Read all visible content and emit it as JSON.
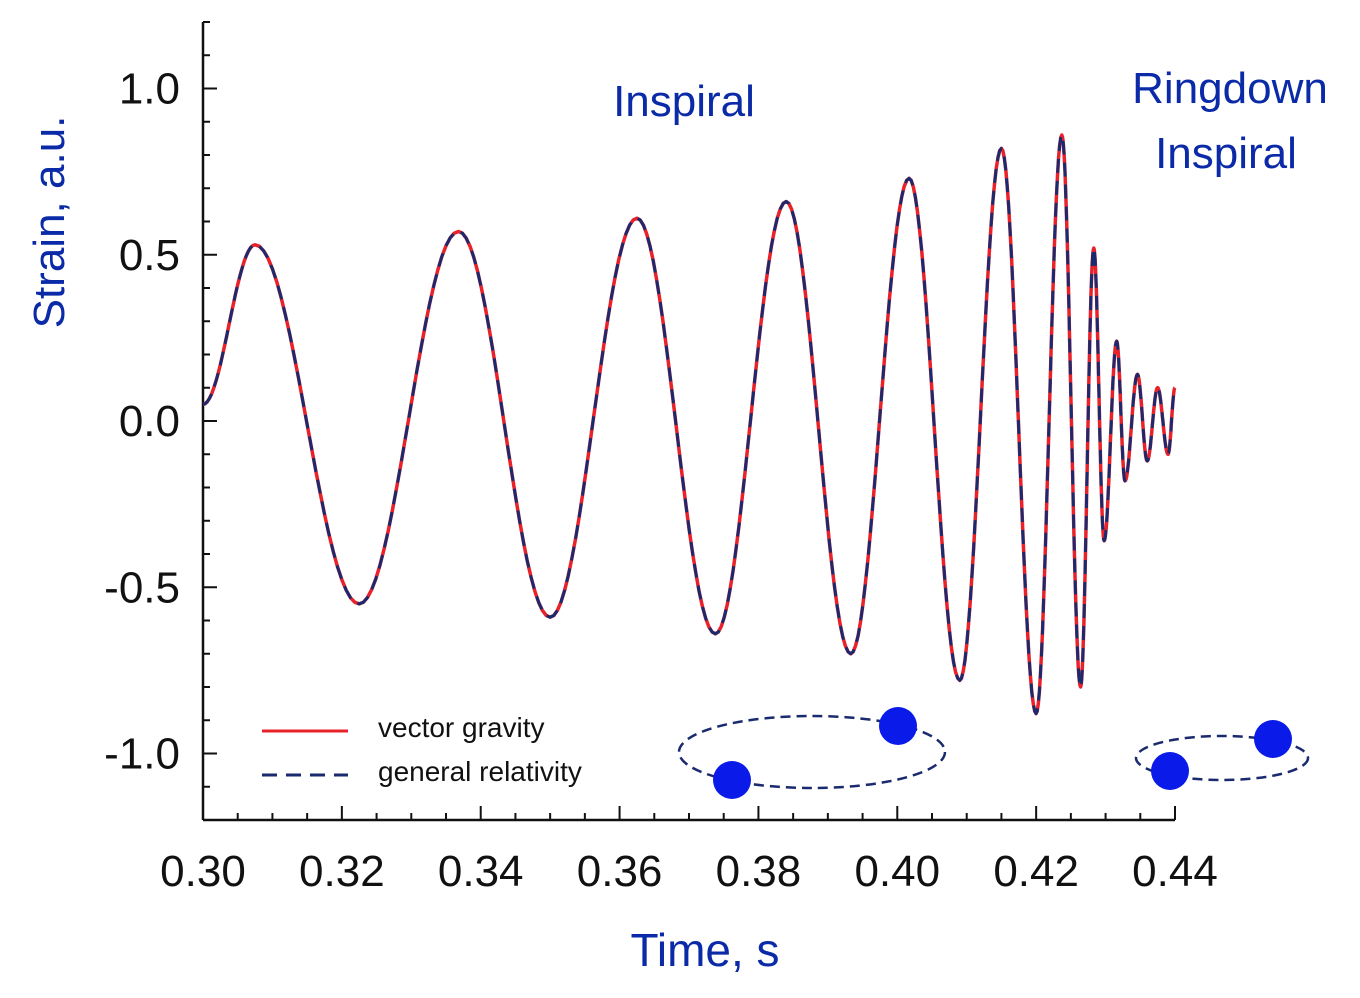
{
  "chart_data": {
    "type": "line",
    "xlabel": "Time, s",
    "ylabel": "Strain, a.u.",
    "xlim": [
      0.3,
      0.44
    ],
    "ylim": [
      -1.2,
      1.2
    ],
    "x_ticks": [
      "0.30",
      "0.32",
      "0.34",
      "0.36",
      "0.38",
      "0.40",
      "0.42",
      "0.44"
    ],
    "y_ticks": [
      "1.0",
      "0.5",
      "0.0",
      "-0.5",
      "-1.0"
    ],
    "grid": false,
    "legend_position": "bottom-left",
    "annotations": {
      "inspiral": "Inspiral",
      "ringdown": "Ringdown",
      "inspiral2": "Inspiral"
    },
    "extrema": {
      "t": [
        0.3,
        0.3075,
        0.3225,
        0.3368,
        0.35,
        0.3625,
        0.3738,
        0.384,
        0.3933,
        0.4017,
        0.409,
        0.415,
        0.42,
        0.4237,
        0.4264,
        0.4283,
        0.4298,
        0.4316,
        0.4328,
        0.4346,
        0.436,
        0.4375,
        0.439,
        0.44
      ],
      "h": [
        0.05,
        0.53,
        -0.55,
        0.57,
        -0.59,
        0.61,
        -0.64,
        0.66,
        -0.7,
        0.73,
        -0.78,
        0.82,
        -0.88,
        0.86,
        -0.8,
        0.52,
        -0.36,
        0.24,
        -0.18,
        0.14,
        -0.12,
        0.1,
        -0.1,
        0.1
      ]
    },
    "series": [
      {
        "name": "vector gravity",
        "color": "#e8222a",
        "style": "solid"
      },
      {
        "name": "general relativity",
        "color": "#1a2a6e",
        "style": "dashed"
      }
    ],
    "colors": {
      "annotation": "#0a2aa8",
      "orbit": "#1a2a6e",
      "body": "#0a1ae8"
    }
  }
}
